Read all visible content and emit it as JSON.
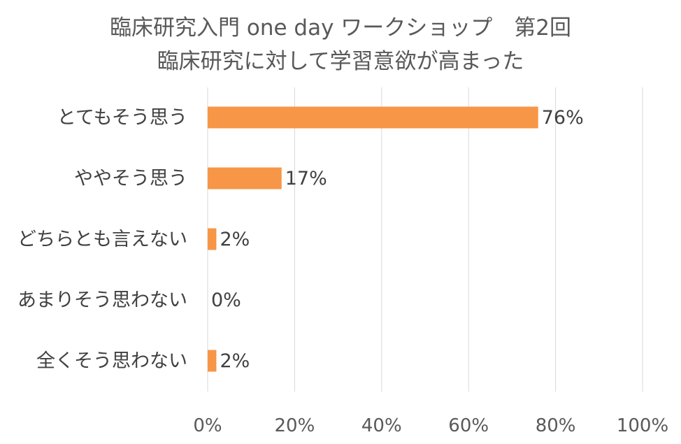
{
  "chart_data": {
    "type": "bar",
    "orientation": "horizontal",
    "title": "臨床研究入門 one day ワークショップ　第2回",
    "subtitle": "臨床研究に対して学習意欲が高まった",
    "categories": [
      "とてもそう思う",
      "ややそう思う",
      "どちらとも言えない",
      "あまりそう思わない",
      "全くそう思わない"
    ],
    "values": [
      76,
      17,
      2,
      0,
      2
    ],
    "data_labels": [
      "76%",
      "17%",
      "2%",
      "0%",
      "2%"
    ],
    "xlim": [
      0,
      100
    ],
    "x_ticks": [
      "0%",
      "20%",
      "40%",
      "60%",
      "80%",
      "100%"
    ],
    "grid": true,
    "legend": "none",
    "bar_color": "#F79646",
    "grid_color": "#D9D9D9"
  }
}
